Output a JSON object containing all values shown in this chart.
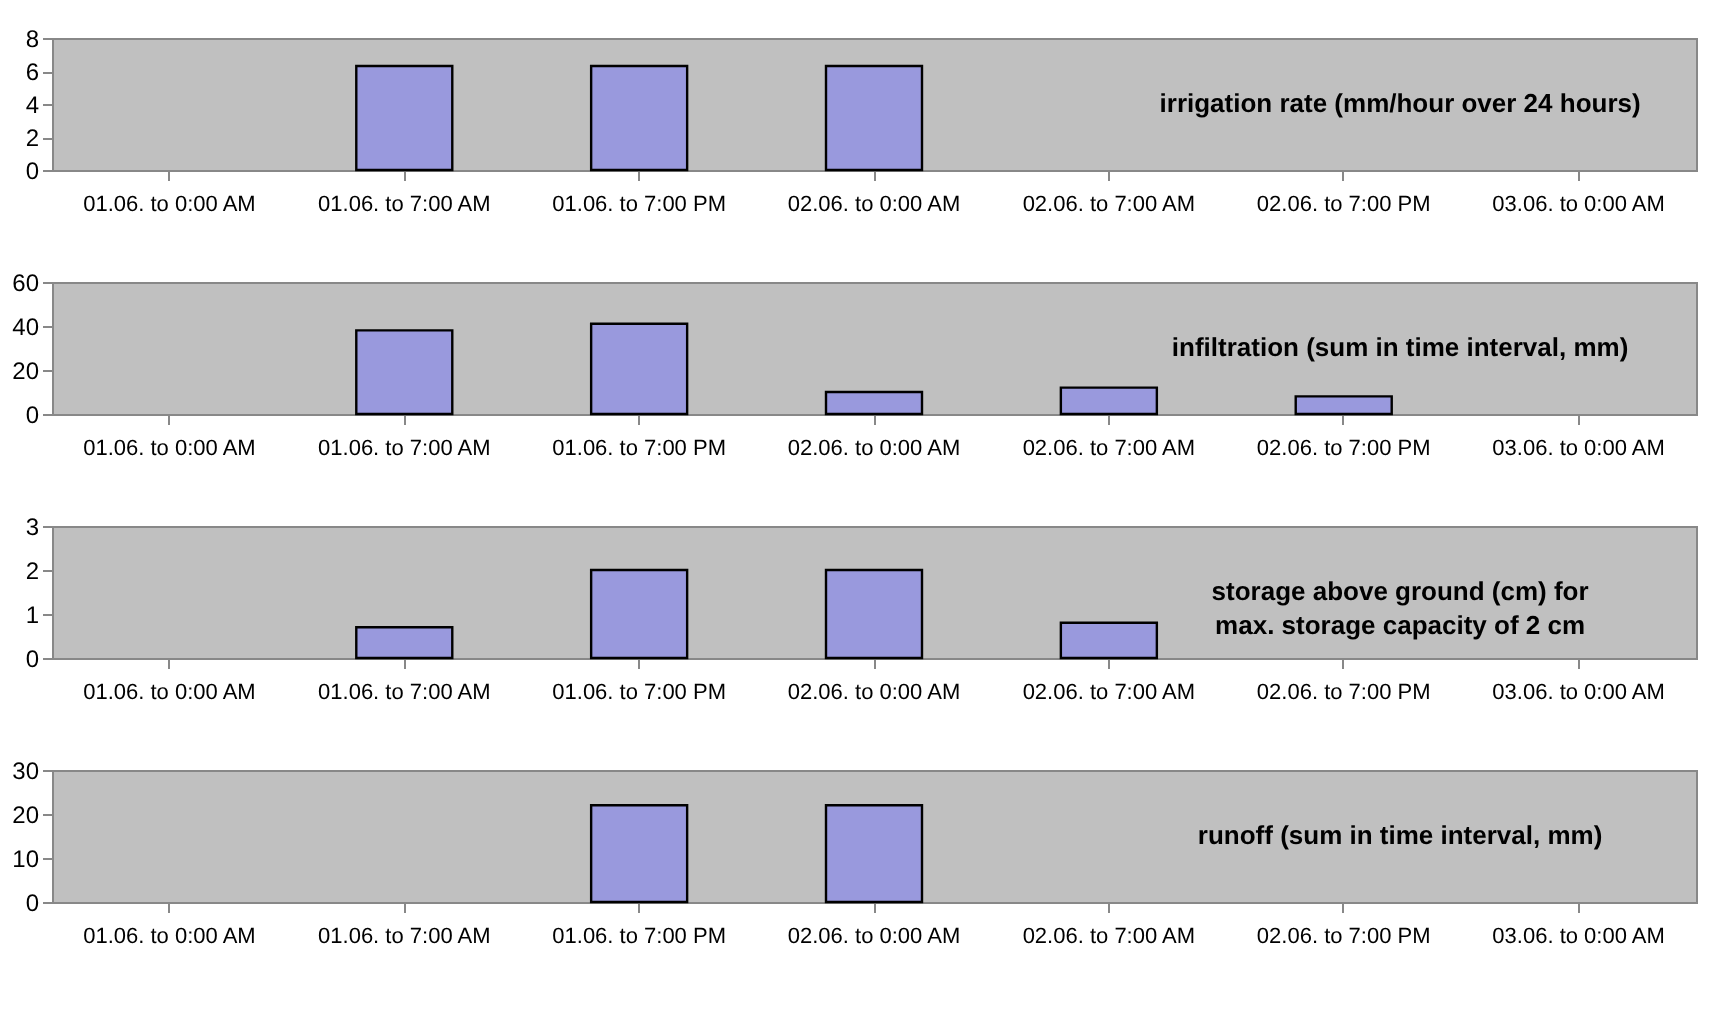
{
  "chart_data": [
    {
      "type": "bar",
      "title": "irrigation rate (mm/hour over 24 hours)",
      "categories": [
        "01.06. to 0:00 AM",
        "01.06. to 7:00 AM",
        "01.06. to 7:00 PM",
        "02.06. to 0:00 AM",
        "02.06. to 7:00 AM",
        "02.06. to 7:00 PM",
        "03.06. to 0:00 AM"
      ],
      "values": [
        null,
        6.3,
        6.3,
        6.3,
        null,
        null,
        null
      ],
      "color": "#9999dd",
      "ylim": [
        0,
        8
      ],
      "yticks": [
        0,
        2,
        4,
        6,
        8
      ],
      "grid": false
    },
    {
      "type": "bar",
      "title": "infiltration (sum in time interval, mm)",
      "categories": [
        "01.06. to 0:00 AM",
        "01.06. to 7:00 AM",
        "01.06. to 7:00 PM",
        "02.06. to 0:00 AM",
        "02.06. to 7:00 AM",
        "02.06. to 7:00 PM",
        "03.06. to 0:00 AM"
      ],
      "values": [
        null,
        38,
        41,
        10,
        12,
        8,
        null
      ],
      "color": "#9999dd",
      "ylim": [
        0,
        60
      ],
      "yticks": [
        0,
        20,
        40,
        60
      ],
      "grid": false
    },
    {
      "type": "bar",
      "title": "storage above ground (cm) for max. storage capacity of 2 cm",
      "categories": [
        "01.06. to 0:00 AM",
        "01.06. to 7:00 AM",
        "01.06. to 7:00 PM",
        "02.06. to 0:00 AM",
        "02.06. to 7:00 AM",
        "02.06. to 7:00 PM",
        "03.06. to 0:00 AM"
      ],
      "values": [
        null,
        0.7,
        2.0,
        2.0,
        0.8,
        null,
        null
      ],
      "color": "#9999dd",
      "ylim": [
        0,
        3
      ],
      "yticks": [
        0,
        1,
        2,
        3
      ],
      "grid": false
    },
    {
      "type": "bar",
      "title": "runoff (sum in time interval, mm)",
      "categories": [
        "01.06. to 0:00 AM",
        "01.06. to 7:00 AM",
        "01.06. to 7:00 PM",
        "02.06. to 0:00 AM",
        "02.06. to 7:00 AM",
        "02.06. to 7:00 PM",
        "03.06. to 0:00 AM"
      ],
      "values": [
        null,
        null,
        22,
        22,
        null,
        null,
        null
      ],
      "color": "#9999dd",
      "ylim": [
        0,
        30
      ],
      "yticks": [
        0,
        10,
        20,
        30
      ],
      "grid": false
    }
  ]
}
